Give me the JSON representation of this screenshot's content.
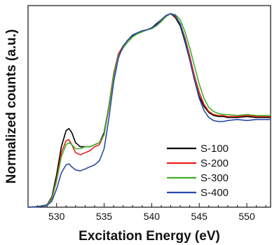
{
  "chart_data": {
    "type": "line",
    "xlabel": "Excitation Energy (eV)",
    "ylabel": "Normalized counts (a.u.)",
    "xlim": [
      527,
      552.5
    ],
    "ylim": [
      0,
      1.0
    ],
    "xticks": [
      530,
      535,
      540,
      545,
      550
    ],
    "show_yticks": false,
    "grid": false,
    "legend_position": "lower-right",
    "series": [
      {
        "name": "S-100",
        "color": "#000000",
        "x": [
          527,
          528,
          529,
          529.5,
          530,
          530.5,
          531,
          531.3,
          531.6,
          532,
          532.5,
          533,
          533.5,
          534,
          534.5,
          535,
          535.5,
          536,
          536.5,
          537,
          537.5,
          538,
          538.5,
          539,
          539.5,
          540,
          540.5,
          541,
          541.5,
          542,
          542.5,
          543,
          543.5,
          544,
          544.5,
          545,
          545.5,
          546,
          546.5,
          547,
          547.5,
          548,
          549,
          550,
          551,
          552.5
        ],
        "y": [
          0.0,
          0.003,
          0.012,
          0.05,
          0.16,
          0.3,
          0.38,
          0.39,
          0.37,
          0.32,
          0.3,
          0.3,
          0.3,
          0.31,
          0.32,
          0.37,
          0.5,
          0.66,
          0.76,
          0.8,
          0.83,
          0.85,
          0.86,
          0.87,
          0.88,
          0.89,
          0.91,
          0.93,
          0.95,
          0.96,
          0.94,
          0.9,
          0.82,
          0.73,
          0.63,
          0.55,
          0.5,
          0.47,
          0.455,
          0.45,
          0.45,
          0.445,
          0.445,
          0.45,
          0.445,
          0.445
        ]
      },
      {
        "name": "S-200",
        "color": "#e8201c",
        "x": [
          527,
          528,
          529,
          529.5,
          530,
          530.5,
          531,
          531.3,
          531.6,
          532,
          532.5,
          533,
          533.5,
          534,
          534.5,
          535,
          535.5,
          536,
          536.5,
          537,
          537.5,
          538,
          538.5,
          539,
          539.5,
          540,
          540.5,
          541,
          541.5,
          542,
          542.5,
          543,
          543.5,
          544,
          544.5,
          545,
          545.5,
          546,
          546.5,
          547,
          547.5,
          548,
          549,
          550,
          551,
          552.5
        ],
        "y": [
          0.0,
          0.003,
          0.01,
          0.045,
          0.14,
          0.27,
          0.33,
          0.335,
          0.31,
          0.27,
          0.26,
          0.27,
          0.28,
          0.3,
          0.31,
          0.36,
          0.5,
          0.66,
          0.76,
          0.8,
          0.83,
          0.855,
          0.865,
          0.875,
          0.88,
          0.89,
          0.905,
          0.925,
          0.95,
          0.96,
          0.945,
          0.91,
          0.84,
          0.75,
          0.65,
          0.57,
          0.51,
          0.475,
          0.46,
          0.455,
          0.455,
          0.45,
          0.45,
          0.455,
          0.45,
          0.45
        ]
      },
      {
        "name": "S-300",
        "color": "#43b02a",
        "x": [
          527,
          528,
          529,
          529.5,
          530,
          530.5,
          531,
          531.3,
          531.6,
          532,
          532.5,
          533,
          533.5,
          534,
          534.5,
          535,
          535.5,
          536,
          536.5,
          537,
          537.5,
          538,
          538.5,
          539,
          539.5,
          540,
          540.5,
          541,
          541.5,
          542,
          542.5,
          543,
          543.5,
          544,
          544.5,
          545,
          545.5,
          546,
          546.5,
          547,
          547.5,
          548,
          549,
          550,
          551,
          552.5
        ],
        "y": [
          0.0,
          0.003,
          0.01,
          0.04,
          0.13,
          0.25,
          0.31,
          0.32,
          0.31,
          0.29,
          0.29,
          0.3,
          0.3,
          0.31,
          0.32,
          0.36,
          0.49,
          0.65,
          0.75,
          0.79,
          0.82,
          0.845,
          0.86,
          0.87,
          0.88,
          0.885,
          0.9,
          0.92,
          0.945,
          0.96,
          0.955,
          0.93,
          0.87,
          0.79,
          0.7,
          0.61,
          0.54,
          0.495,
          0.475,
          0.465,
          0.46,
          0.46,
          0.455,
          0.46,
          0.455,
          0.455
        ]
      },
      {
        "name": "S-400",
        "color": "#2a4ba8",
        "x": [
          527,
          528,
          529,
          529.5,
          530,
          530.5,
          531,
          531.3,
          531.6,
          532,
          532.5,
          533,
          533.5,
          534,
          534.5,
          535,
          535.5,
          536,
          536.5,
          537,
          537.5,
          538,
          538.5,
          539,
          539.5,
          540,
          540.5,
          541,
          541.5,
          542,
          542.5,
          543,
          543.5,
          544,
          544.5,
          545,
          545.5,
          546,
          546.5,
          547,
          547.5,
          548,
          549,
          550,
          551,
          552.5
        ],
        "y": [
          0.0,
          0.002,
          0.008,
          0.03,
          0.09,
          0.17,
          0.21,
          0.215,
          0.2,
          0.185,
          0.18,
          0.19,
          0.2,
          0.21,
          0.23,
          0.29,
          0.44,
          0.62,
          0.74,
          0.8,
          0.83,
          0.855,
          0.865,
          0.875,
          0.88,
          0.89,
          0.905,
          0.93,
          0.95,
          0.96,
          0.95,
          0.91,
          0.83,
          0.73,
          0.63,
          0.54,
          0.48,
          0.445,
          0.43,
          0.425,
          0.425,
          0.43,
          0.435,
          0.43,
          0.435,
          0.435
        ]
      }
    ]
  }
}
